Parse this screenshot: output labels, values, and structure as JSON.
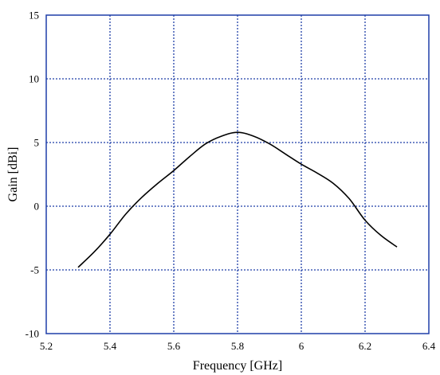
{
  "chart_data": {
    "type": "line",
    "xlabel": "Frequency [GHz]",
    "ylabel": "Gain [dBi]",
    "xlim": [
      5.2,
      6.4
    ],
    "ylim": [
      -10,
      15
    ],
    "x_ticks": [
      "5.2",
      "5.4",
      "5.6",
      "5.8",
      "6",
      "6.2",
      "6.4"
    ],
    "y_ticks": [
      "-10",
      "-5",
      "0",
      "5",
      "10",
      "15"
    ],
    "grid": true,
    "grid_color": "#1f3fa8",
    "line_color": "#000000",
    "series": [
      {
        "x": [
          5.3,
          5.35,
          5.4,
          5.45,
          5.5,
          5.55,
          5.6,
          5.65,
          5.7,
          5.75,
          5.8,
          5.85,
          5.9,
          5.95,
          6.0,
          6.05,
          6.1,
          6.15,
          6.2,
          6.25,
          6.3
        ],
        "y": [
          -4.8,
          -3.6,
          -2.2,
          -0.6,
          0.7,
          1.8,
          2.8,
          3.9,
          4.9,
          5.5,
          5.8,
          5.5,
          4.9,
          4.1,
          3.3,
          2.6,
          1.8,
          0.6,
          -1.1,
          -2.3,
          -3.2
        ]
      }
    ]
  }
}
